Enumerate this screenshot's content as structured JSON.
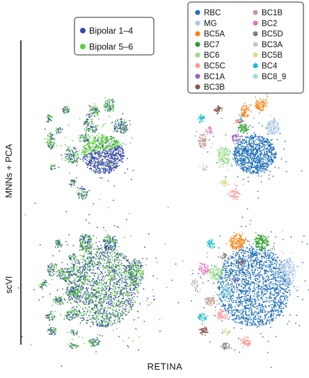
{
  "figure": {
    "dataset_label": "RETINA",
    "row_labels": [
      "MNNs + PCA",
      "scVI"
    ]
  },
  "legends": {
    "batch": {
      "entries": [
        {
          "label": "Bipolar 1–4",
          "color": "#3a4aa8"
        },
        {
          "label": "Bipolar 5–6",
          "color": "#5ccf3c"
        }
      ]
    },
    "cell_type": {
      "entries": [
        {
          "label": "RBC",
          "color": "#1f6fb8"
        },
        {
          "label": "MG",
          "color": "#a9c7e8"
        },
        {
          "label": "BC5A",
          "color": "#ff7f0e"
        },
        {
          "label": "BC7",
          "color": "#2ca02c"
        },
        {
          "label": "BC6",
          "color": "#98df8a"
        },
        {
          "label": "BC5C",
          "color": "#ff9896"
        },
        {
          "label": "BC1A",
          "color": "#9467bd"
        },
        {
          "label": "BC3B",
          "color": "#8c564b"
        },
        {
          "label": "BC1B",
          "color": "#c49c94"
        },
        {
          "label": "BC2",
          "color": "#e377c2"
        },
        {
          "label": "BC5D",
          "color": "#7f7f7f"
        },
        {
          "label": "BC3A",
          "color": "#c7c7c7"
        },
        {
          "label": "BC5B",
          "color": "#dbdb8d"
        },
        {
          "label": "BC4",
          "color": "#17becf"
        },
        {
          "label": "BC8_9",
          "color": "#9edae5"
        }
      ]
    }
  },
  "chart_data": [
    {
      "type": "scatter",
      "panel": "MNNs + PCA, colored by batch",
      "colored_by": "batch",
      "series": [
        {
          "name": "Bipolar 1–4",
          "color": "#3a4aa8"
        },
        {
          "name": "Bipolar 5–6",
          "color": "#5ccf3c"
        }
      ]
    },
    {
      "type": "scatter",
      "panel": "MNNs + PCA, colored by cell type",
      "colored_by": "cell_type",
      "series": [
        {
          "name": "RBC",
          "color": "#1f6fb8"
        },
        {
          "name": "MG",
          "color": "#a9c7e8"
        },
        {
          "name": "BC5A",
          "color": "#ff7f0e"
        },
        {
          "name": "BC7",
          "color": "#2ca02c"
        },
        {
          "name": "BC6",
          "color": "#98df8a"
        },
        {
          "name": "BC5C",
          "color": "#ff9896"
        },
        {
          "name": "BC1A",
          "color": "#9467bd"
        },
        {
          "name": "BC3B",
          "color": "#8c564b"
        },
        {
          "name": "BC1B",
          "color": "#c49c94"
        },
        {
          "name": "BC2",
          "color": "#e377c2"
        },
        {
          "name": "BC5D",
          "color": "#7f7f7f"
        },
        {
          "name": "BC3A",
          "color": "#c7c7c7"
        },
        {
          "name": "BC5B",
          "color": "#dbdb8d"
        },
        {
          "name": "BC4",
          "color": "#17becf"
        },
        {
          "name": "BC8_9",
          "color": "#9edae5"
        }
      ]
    },
    {
      "type": "scatter",
      "panel": "scVI, colored by batch",
      "colored_by": "batch",
      "series": [
        {
          "name": "Bipolar 1–4",
          "color": "#3a4aa8"
        },
        {
          "name": "Bipolar 5–6",
          "color": "#5ccf3c"
        }
      ]
    },
    {
      "type": "scatter",
      "panel": "scVI, colored by cell type",
      "colored_by": "cell_type",
      "series": [
        {
          "name": "RBC",
          "color": "#1f6fb8"
        },
        {
          "name": "MG",
          "color": "#a9c7e8"
        },
        {
          "name": "BC5A",
          "color": "#ff7f0e"
        },
        {
          "name": "BC7",
          "color": "#2ca02c"
        },
        {
          "name": "BC6",
          "color": "#98df8a"
        },
        {
          "name": "BC5C",
          "color": "#ff9896"
        },
        {
          "name": "BC1A",
          "color": "#9467bd"
        },
        {
          "name": "BC3B",
          "color": "#8c564b"
        },
        {
          "name": "BC1B",
          "color": "#c49c94"
        },
        {
          "name": "BC2",
          "color": "#e377c2"
        },
        {
          "name": "BC5D",
          "color": "#7f7f7f"
        },
        {
          "name": "BC3A",
          "color": "#c7c7c7"
        },
        {
          "name": "BC5B",
          "color": "#dbdb8d"
        },
        {
          "name": "BC4",
          "color": "#17becf"
        },
        {
          "name": "BC8_9",
          "color": "#9edae5"
        }
      ]
    }
  ]
}
